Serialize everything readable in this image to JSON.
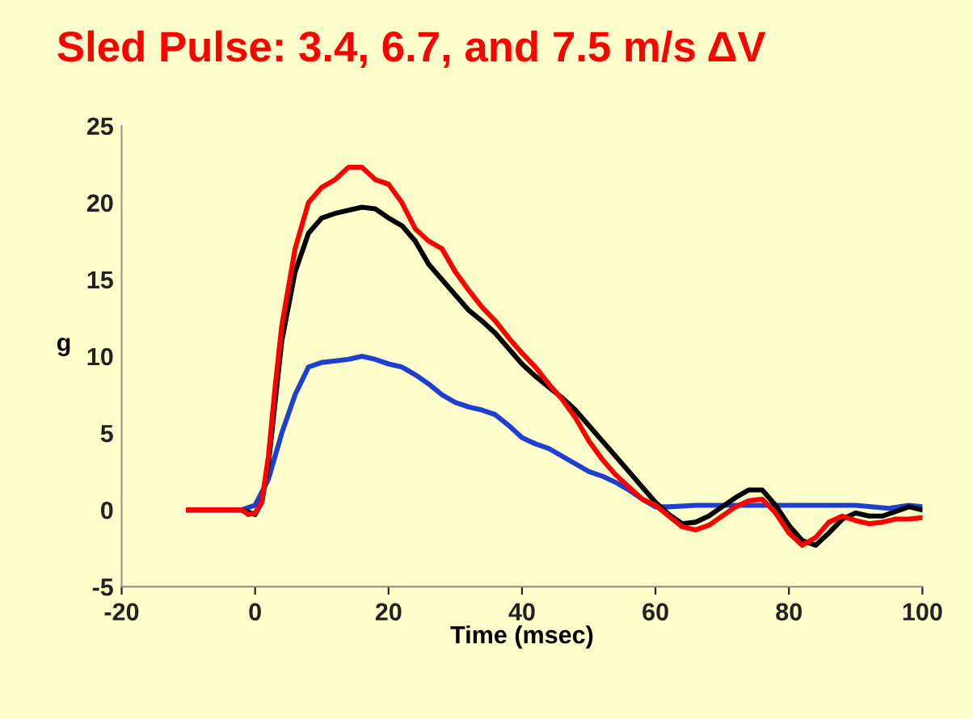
{
  "chart_data": {
    "type": "line",
    "title": "Sled Pulse: 3.4, 6.7, and 7.5 m/s ΔV",
    "xlabel": "Time (msec)",
    "ylabel": "g",
    "xlim": [
      -20,
      100
    ],
    "xticks": [
      -20,
      0,
      20,
      40,
      60,
      80,
      100
    ],
    "ylim": [
      -5,
      25
    ],
    "yticks": [
      -5,
      0,
      5,
      10,
      15,
      20,
      25
    ],
    "grid": false,
    "marker": "none",
    "line_style": "solid",
    "series": [
      {
        "color": "#1f3fd0",
        "x": [
          -10,
          -2,
          0,
          2,
          4,
          6,
          8,
          10,
          12,
          14,
          16,
          18,
          20,
          22,
          24,
          26,
          28,
          30,
          32,
          34,
          36,
          38,
          40,
          42,
          44,
          46,
          48,
          50,
          52,
          54,
          56,
          58,
          60,
          62,
          66,
          70,
          80,
          90,
          95,
          98,
          100
        ],
        "values": [
          0,
          0,
          0.3,
          2,
          5,
          7.5,
          9.3,
          9.6,
          9.7,
          9.8,
          10,
          9.8,
          9.5,
          9.3,
          8.8,
          8.2,
          7.5,
          7.0,
          6.7,
          6.5,
          6.2,
          5.5,
          4.7,
          4.3,
          4.0,
          3.5,
          3.0,
          2.5,
          2.2,
          1.8,
          1.3,
          0.7,
          0.2,
          0.2,
          0.3,
          0.3,
          0.3,
          0.3,
          0.1,
          0.3,
          0.2
        ]
      },
      {
        "color": "#000000",
        "x": [
          -10,
          -2,
          0,
          1,
          2,
          3,
          4,
          6,
          8,
          10,
          12,
          14,
          16,
          18,
          20,
          22,
          24,
          26,
          28,
          30,
          32,
          34,
          36,
          38,
          40,
          42,
          44,
          46,
          48,
          50,
          52,
          54,
          56,
          58,
          60,
          62,
          64,
          66,
          68,
          70,
          72,
          74,
          76,
          78,
          80,
          82,
          84,
          86,
          88,
          90,
          92,
          94,
          96,
          98,
          100
        ],
        "values": [
          0,
          0,
          -0.3,
          0.5,
          3,
          7,
          11,
          15.5,
          18,
          19,
          19.3,
          19.5,
          19.7,
          19.6,
          19,
          18.5,
          17.5,
          16,
          15,
          14,
          13,
          12.3,
          11.5,
          10.5,
          9.5,
          8.7,
          8,
          7.3,
          6.5,
          5.5,
          4.5,
          3.5,
          2.5,
          1.5,
          0.5,
          -0.3,
          -0.9,
          -0.8,
          -0.4,
          0.2,
          0.8,
          1.3,
          1.3,
          0.3,
          -1,
          -2,
          -2.3,
          -1.5,
          -0.6,
          -0.2,
          -0.4,
          -0.4,
          -0.1,
          0.2,
          0
        ]
      },
      {
        "color": "#ff0000",
        "x": [
          -10,
          -2,
          -1,
          0,
          1,
          2,
          3,
          4,
          6,
          8,
          10,
          12,
          14,
          16,
          18,
          20,
          22,
          24,
          26,
          28,
          30,
          32,
          34,
          36,
          38,
          40,
          42,
          44,
          46,
          48,
          50,
          52,
          54,
          56,
          58,
          60,
          62,
          64,
          66,
          68,
          70,
          72,
          74,
          76,
          78,
          80,
          82,
          84,
          86,
          88,
          90,
          92,
          94,
          96,
          98,
          100
        ],
        "values": [
          0,
          0,
          -0.3,
          -0.2,
          0.5,
          3.5,
          8,
          12,
          17,
          20,
          21,
          21.5,
          22.3,
          22.3,
          21.5,
          21.2,
          20,
          18.3,
          17.5,
          17,
          15.5,
          14.3,
          13.2,
          12.3,
          11.2,
          10.2,
          9.3,
          8.2,
          7.2,
          6,
          4.5,
          3.3,
          2.3,
          1.5,
          0.7,
          0.3,
          -0.4,
          -1.1,
          -1.3,
          -1,
          -0.4,
          0.2,
          0.6,
          0.7,
          -0.2,
          -1.5,
          -2.3,
          -1.8,
          -0.8,
          -0.4,
          -0.7,
          -0.9,
          -0.8,
          -0.6,
          -0.6,
          -0.5
        ]
      }
    ]
  }
}
